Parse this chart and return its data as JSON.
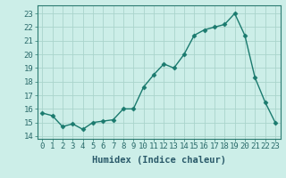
{
  "x": [
    0,
    1,
    2,
    3,
    4,
    5,
    6,
    7,
    8,
    9,
    10,
    11,
    12,
    13,
    14,
    15,
    16,
    17,
    18,
    19,
    20,
    21,
    22,
    23
  ],
  "y": [
    15.7,
    15.5,
    14.7,
    14.9,
    14.5,
    15.0,
    15.1,
    15.2,
    16.0,
    16.0,
    17.6,
    18.5,
    19.3,
    19.0,
    20.0,
    21.4,
    21.8,
    22.0,
    22.2,
    23.0,
    21.4,
    18.3,
    16.5,
    15.0
  ],
  "line_color": "#1a7a6e",
  "marker": "D",
  "markersize": 2.5,
  "linewidth": 1.0,
  "bg_color": "#cceee8",
  "grid_color": "#aad4cc",
  "xlabel": "Humidex (Indice chaleur)",
  "ylim": [
    13.8,
    23.6
  ],
  "xlim": [
    -0.5,
    23.5
  ],
  "yticks": [
    14,
    15,
    16,
    17,
    18,
    19,
    20,
    21,
    22,
    23
  ],
  "xticks": [
    0,
    1,
    2,
    3,
    4,
    5,
    6,
    7,
    8,
    9,
    10,
    11,
    12,
    13,
    14,
    15,
    16,
    17,
    18,
    19,
    20,
    21,
    22,
    23
  ],
  "tick_fontsize": 6.5,
  "xlabel_fontsize": 7.5
}
